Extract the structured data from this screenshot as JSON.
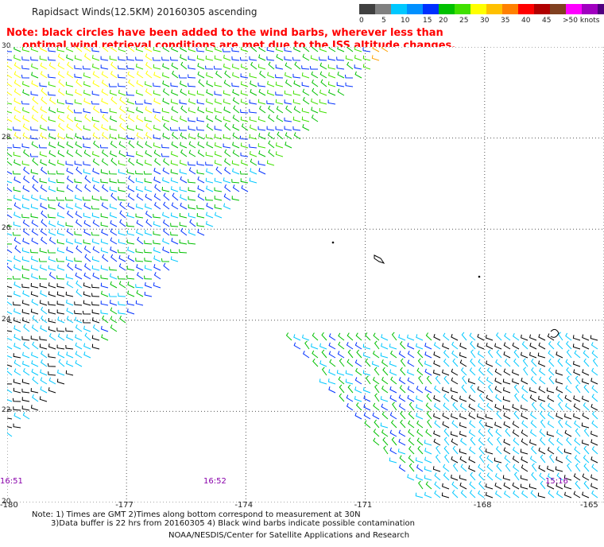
{
  "title": "Rapidsact Winds(12.5KM) 20160305 ascending",
  "note_line1": "Note: black circles have been added to the wind barbs, wherever less than",
  "note_line2": "optimal wind retrieval conditions are met due to the ISS altitude changes.",
  "scale": {
    "colors": [
      "#404040",
      "#808080",
      "#00c8ff",
      "#0090ff",
      "#0030ff",
      "#00c000",
      "#40e000",
      "#ffff00",
      "#ffc000",
      "#ff8000",
      "#ff0000",
      "#b00000",
      "#804020",
      "#ff00ff",
      "#a000c0",
      "#500080"
    ],
    "labels": [
      "0",
      "5",
      "10",
      "15",
      "20",
      "25",
      "30",
      "35",
      "40",
      "45",
      ">50 knots"
    ]
  },
  "lat_labels": [
    "30",
    "28",
    "26",
    "24",
    "22",
    "20"
  ],
  "lon_labels": [
    "-180",
    "-177",
    "-174",
    "-171",
    "-168",
    "-165"
  ],
  "times": [
    "16:51",
    "16:52",
    "15:16"
  ],
  "footer_note1": "Note: 1) Times are GMT 2)Times along bottom correspond to measurement at 30N",
  "footer_note2": "3)Data buffer is 22 hrs from 20160305 4) Black wind barbs indicate possible contamination",
  "credit": "NOAA/NESDIS/Center for Satellite Applications and Research",
  "map": {
    "lon_range": [
      -180,
      -165
    ],
    "lat_range": [
      20,
      30
    ],
    "barb_colors": {
      "light_blue": "#00c8ff",
      "blue": "#0030ff",
      "green": "#00c000",
      "light_green": "#40e000",
      "yellow": "#ffff00",
      "orange": "#ffa000",
      "black": "#000000"
    }
  }
}
